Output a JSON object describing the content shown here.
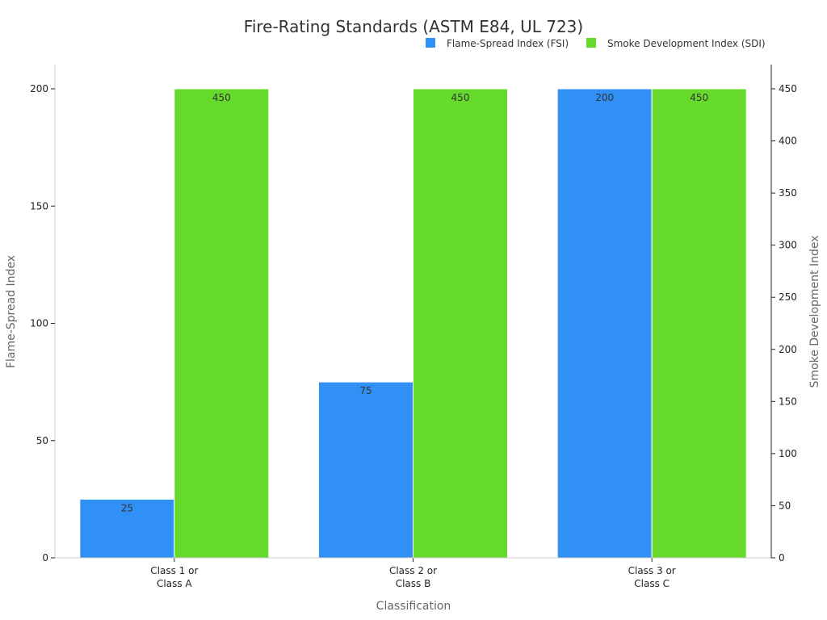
{
  "chart_data": {
    "type": "bar",
    "title": "Fire-Rating Standards (ASTM E84, UL 723)",
    "xlabel": "Classification",
    "ylabel": "Flame-Spread Index",
    "y2label": "Smoke Development Index",
    "categories": [
      [
        "Class 1 or",
        "Class A"
      ],
      [
        "Class 2 or",
        "Class B"
      ],
      [
        "Class 3 or",
        "Class C"
      ]
    ],
    "series": [
      {
        "name": "Flame-Spread Index (FSI)",
        "axis": "left",
        "color": "#3090f5",
        "values": [
          25,
          75,
          200
        ],
        "labels": [
          "25",
          "75",
          "200"
        ]
      },
      {
        "name": "Smoke Development Index (SDI)",
        "axis": "right",
        "color": "#66da2a",
        "values": [
          450,
          450,
          450
        ],
        "labels": [
          "450",
          "450",
          "450"
        ]
      }
    ],
    "ylim": [
      0,
      200
    ],
    "yticks": [
      0,
      50,
      100,
      150,
      200
    ],
    "y2lim": [
      0,
      450
    ],
    "y2ticks": [
      0,
      50,
      100,
      150,
      200,
      250,
      300,
      350,
      400,
      450
    ],
    "legend_position": "top-right",
    "grid": false
  }
}
